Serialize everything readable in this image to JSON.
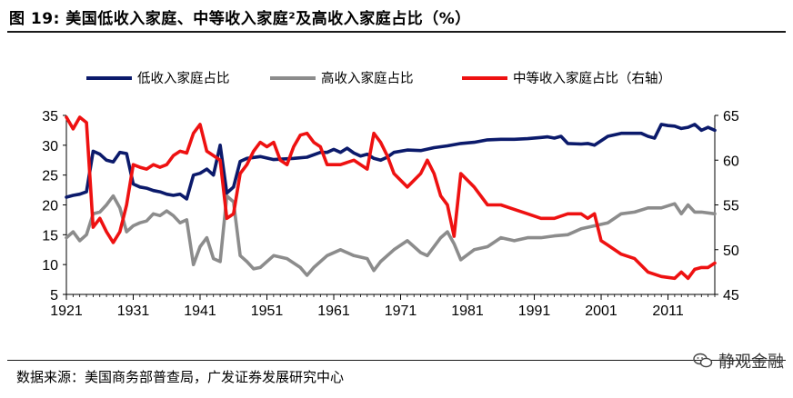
{
  "header": {
    "title": "图 19:  美国低收入家庭、中等收入家庭²及高收入家庭占比（%）"
  },
  "footer": {
    "source": "数据来源：美国商务部普查局，广发证券发展研究中心",
    "watermark": "静观金融"
  },
  "chart_data": {
    "type": "line",
    "title": "",
    "xlabel": "",
    "ylabel": "",
    "x_ticks": [
      "1921",
      "1931",
      "1941",
      "1951",
      "1961",
      "1971",
      "1981",
      "1991",
      "2001",
      "2011"
    ],
    "y_left_ticks": [
      "35",
      "30",
      "25",
      "20",
      "15",
      "10",
      "5"
    ],
    "y_right_ticks": [
      "65",
      "60",
      "55",
      "50",
      "45"
    ],
    "ylim_left": [
      5,
      35
    ],
    "ylim_right": [
      45,
      65
    ],
    "xlim": [
      1921,
      2018
    ],
    "legend_position": "top",
    "series": [
      {
        "name": "低收入家庭占比",
        "axis": "left",
        "color": "#0b1a6b",
        "x": [
          1921,
          1922,
          1923,
          1924,
          1925,
          1926,
          1927,
          1928,
          1929,
          1930,
          1931,
          1932,
          1933,
          1934,
          1935,
          1936,
          1937,
          1938,
          1939,
          1940,
          1941,
          1942,
          1943,
          1944,
          1945,
          1946,
          1947,
          1948,
          1950,
          1952,
          1955,
          1957,
          1959,
          1960,
          1961,
          1962,
          1963,
          1964,
          1965,
          1966,
          1967,
          1968,
          1969,
          1970,
          1972,
          1974,
          1976,
          1978,
          1980,
          1982,
          1984,
          1986,
          1988,
          1990,
          1992,
          1993,
          1994,
          1995,
          1996,
          1998,
          1999,
          2000,
          2002,
          2004,
          2006,
          2007,
          2008,
          2009,
          2010,
          2011,
          2012,
          2013,
          2014,
          2015,
          2016,
          2017,
          2018
        ],
        "values": [
          21.3,
          21.6,
          21.8,
          22.2,
          29.0,
          28.5,
          27.5,
          27.2,
          28.8,
          28.6,
          23.5,
          23.0,
          22.8,
          22.4,
          22.2,
          21.8,
          21.6,
          21.8,
          21.0,
          25.0,
          25.3,
          26.0,
          25.0,
          30.0,
          22.0,
          23.0,
          27.3,
          27.8,
          28.1,
          27.6,
          27.8,
          28.0,
          28.8,
          28.8,
          29.3,
          28.8,
          29.5,
          28.7,
          28.2,
          28.5,
          27.8,
          27.5,
          28.0,
          28.8,
          29.2,
          29.1,
          29.6,
          29.9,
          30.3,
          30.5,
          30.9,
          31.0,
          31.0,
          31.1,
          31.3,
          31.4,
          31.2,
          31.5,
          30.3,
          30.2,
          30.3,
          30.0,
          31.5,
          32.0,
          32.0,
          32.0,
          31.5,
          31.2,
          33.5,
          33.3,
          33.2,
          32.8,
          33.0,
          33.5,
          32.5,
          33.0,
          32.5
        ]
      },
      {
        "name": "高收入家庭占比",
        "axis": "left",
        "color": "#8c8c8c",
        "x": [
          1921,
          1922,
          1923,
          1924,
          1925,
          1926,
          1927,
          1928,
          1929,
          1930,
          1931,
          1932,
          1933,
          1934,
          1935,
          1936,
          1937,
          1938,
          1939,
          1940,
          1941,
          1942,
          1943,
          1944,
          1945,
          1946,
          1947,
          1948,
          1949,
          1950,
          1952,
          1954,
          1956,
          1957,
          1958,
          1960,
          1962,
          1964,
          1966,
          1967,
          1968,
          1970,
          1972,
          1974,
          1975,
          1977,
          1978,
          1979,
          1980,
          1982,
          1984,
          1986,
          1988,
          1990,
          1992,
          1994,
          1996,
          1998,
          2000,
          2002,
          2004,
          2006,
          2008,
          2010,
          2012,
          2013,
          2014,
          2015,
          2016,
          2018
        ],
        "values": [
          14.5,
          15.5,
          14.0,
          15.0,
          18.5,
          18.8,
          20.0,
          21.5,
          19.5,
          15.5,
          16.5,
          17.0,
          17.3,
          18.5,
          18.2,
          19.0,
          18.2,
          17.0,
          17.5,
          10.0,
          13.0,
          14.5,
          11.0,
          10.5,
          21.5,
          20.5,
          11.5,
          10.5,
          9.3,
          9.5,
          11.5,
          11.0,
          9.5,
          8.2,
          9.5,
          11.5,
          12.5,
          11.5,
          11.0,
          9.0,
          10.5,
          12.5,
          14.0,
          12.0,
          11.5,
          14.5,
          15.5,
          13.5,
          10.8,
          12.5,
          13.0,
          14.5,
          14.0,
          14.5,
          14.5,
          14.8,
          15.0,
          16.0,
          16.5,
          17.0,
          18.5,
          18.8,
          19.5,
          19.5,
          20.2,
          18.5,
          20.0,
          18.8,
          18.8,
          18.5
        ]
      },
      {
        "name": "中等收入家庭占比（右轴）",
        "axis": "right",
        "color": "#ee1111",
        "x": [
          1921,
          1922,
          1923,
          1924,
          1925,
          1926,
          1927,
          1928,
          1929,
          1930,
          1931,
          1932,
          1933,
          1934,
          1935,
          1936,
          1937,
          1938,
          1939,
          1940,
          1941,
          1942,
          1943,
          1944,
          1945,
          1946,
          1947,
          1948,
          1949,
          1950,
          1951,
          1952,
          1953,
          1954,
          1955,
          1956,
          1957,
          1958,
          1959,
          1960,
          1962,
          1964,
          1966,
          1967,
          1968,
          1969,
          1970,
          1972,
          1974,
          1975,
          1976,
          1977,
          1978,
          1979,
          1980,
          1982,
          1984,
          1986,
          1988,
          1990,
          1992,
          1994,
          1996,
          1998,
          1999,
          2000,
          2001,
          2002,
          2004,
          2006,
          2008,
          2010,
          2012,
          2013,
          2014,
          2015,
          2016,
          2017,
          2018
        ],
        "values": [
          64.8,
          63.5,
          64.8,
          64.2,
          52.5,
          53.5,
          52.0,
          50.8,
          52.0,
          55.0,
          59.5,
          59.2,
          59.0,
          59.5,
          59.2,
          59.5,
          60.5,
          61.0,
          60.8,
          63.0,
          64.0,
          61.0,
          60.5,
          60.0,
          53.5,
          54.0,
          58.5,
          59.5,
          61.0,
          62.0,
          61.5,
          62.0,
          60.0,
          59.5,
          61.5,
          62.8,
          63.0,
          62.0,
          61.5,
          59.5,
          59.5,
          60.0,
          59.0,
          63.0,
          62.0,
          60.5,
          58.5,
          57.0,
          58.5,
          60.0,
          58.5,
          56.0,
          55.0,
          51.5,
          58.5,
          57.0,
          55.0,
          55.0,
          54.5,
          54.0,
          53.5,
          53.5,
          54.0,
          54.0,
          53.5,
          54.0,
          51.0,
          50.5,
          49.5,
          49.0,
          47.5,
          47.0,
          46.8,
          47.5,
          46.8,
          47.8,
          48.0,
          48.0,
          48.5
        ]
      }
    ]
  }
}
